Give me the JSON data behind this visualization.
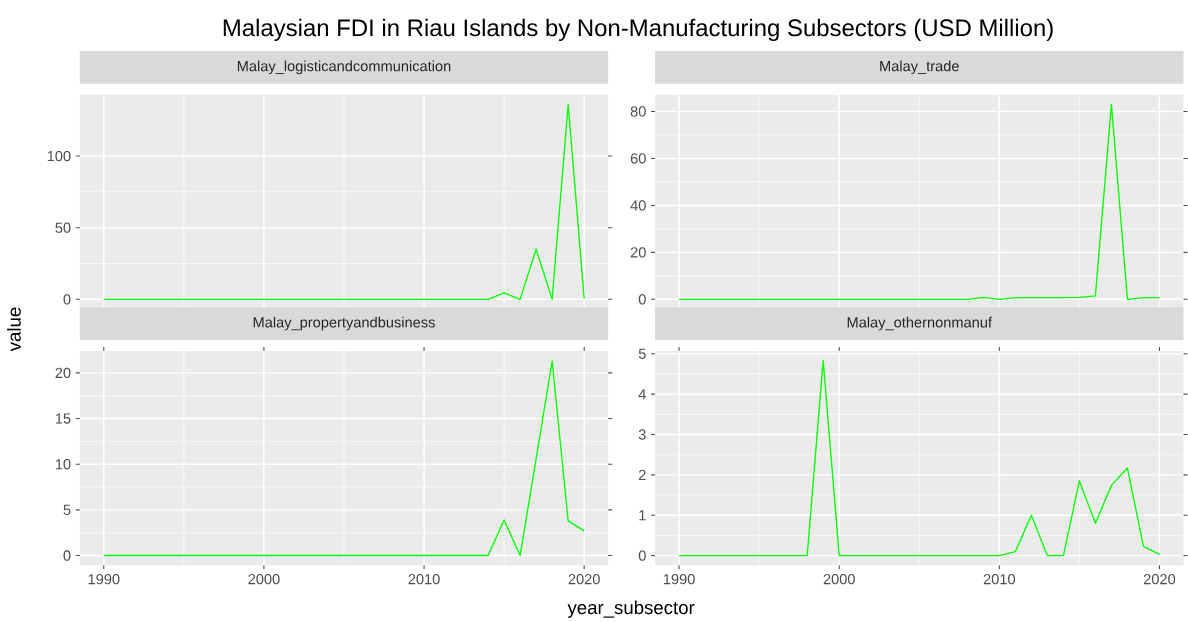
{
  "chart_data": [
    {
      "type": "line",
      "title": "Malaysian FDI in Riau Islands by Non-Manufacturing Subsectors (USD Million)",
      "subtitle": "Malay_logisticandcommunication",
      "ylabel": "value",
      "x": [
        1990,
        1991,
        1992,
        1993,
        1994,
        1995,
        1996,
        1997,
        1998,
        1999,
        2000,
        2001,
        2002,
        2003,
        2004,
        2005,
        2006,
        2007,
        2008,
        2009,
        2010,
        2011,
        2012,
        2013,
        2014,
        2015,
        2016,
        2017,
        2018,
        2019,
        2020
      ],
      "series": [
        {
          "color": "#00ff00",
          "values": [
            0,
            0,
            0,
            0,
            0,
            0,
            0,
            0,
            0,
            0,
            0,
            0,
            0,
            0,
            0,
            0,
            0,
            0,
            0,
            0,
            0,
            0,
            0,
            0,
            0,
            4.5,
            0,
            35,
            0,
            136,
            0.5
          ]
        }
      ],
      "xlim": [
        1988.5,
        2021.5
      ],
      "ylim": [
        -6.8,
        142.8
      ],
      "xticks": [
        1990,
        2000,
        2010,
        2020
      ],
      "yticks": [
        0,
        50,
        100
      ],
      "grid": true,
      "tick_labels": "y"
    },
    {
      "type": "line",
      "subtitle": "Malay_trade",
      "x": [
        1990,
        1991,
        1992,
        1993,
        1994,
        1995,
        1996,
        1997,
        1998,
        1999,
        2000,
        2001,
        2002,
        2003,
        2004,
        2005,
        2006,
        2007,
        2008,
        2009,
        2010,
        2011,
        2012,
        2013,
        2014,
        2015,
        2016,
        2017,
        2018,
        2019,
        2020
      ],
      "series": [
        {
          "color": "#00ff00",
          "values": [
            0,
            0,
            0,
            0,
            0,
            0,
            0,
            0,
            0,
            0,
            0,
            0,
            0,
            0,
            0,
            0,
            0,
            0,
            0,
            0.8,
            0,
            0.7,
            0.7,
            0.7,
            0.7,
            0.8,
            1.5,
            83,
            0,
            0.7,
            0.7
          ]
        }
      ],
      "xlim": [
        1988.5,
        2021.5
      ],
      "ylim": [
        -4.15,
        87.15
      ],
      "xticks": [
        1990,
        2000,
        2010,
        2020
      ],
      "yticks": [
        0,
        20,
        40,
        60,
        80
      ],
      "grid": true,
      "tick_labels": "y"
    },
    {
      "type": "line",
      "subtitle": "Malay_propertyandbusiness",
      "xlabel": "year_subsector",
      "x": [
        1990,
        1991,
        1992,
        1993,
        1994,
        1995,
        1996,
        1997,
        1998,
        1999,
        2000,
        2001,
        2002,
        2003,
        2004,
        2005,
        2006,
        2007,
        2008,
        2009,
        2010,
        2011,
        2012,
        2013,
        2014,
        2015,
        2016,
        2017,
        2018,
        2019,
        2020
      ],
      "series": [
        {
          "color": "#00ff00",
          "values": [
            0,
            0,
            0,
            0,
            0,
            0,
            0,
            0,
            0,
            0,
            0,
            0,
            0,
            0,
            0,
            0,
            0,
            0,
            0,
            0,
            0,
            0,
            0,
            0,
            0,
            3.9,
            0,
            10.6,
            21.3,
            3.8,
            2.7
          ]
        }
      ],
      "xlim": [
        1988.5,
        2021.5
      ],
      "ylim": [
        -1.07,
        22.4
      ],
      "xticks": [
        1990,
        2000,
        2010,
        2020
      ],
      "yticks": [
        0,
        5,
        10,
        15,
        20
      ],
      "grid": true
    },
    {
      "type": "line",
      "subtitle": "Malay_othernonmanuf",
      "x": [
        1990,
        1991,
        1992,
        1993,
        1994,
        1995,
        1996,
        1997,
        1998,
        1999,
        2000,
        2001,
        2002,
        2003,
        2004,
        2005,
        2006,
        2007,
        2008,
        2009,
        2010,
        2011,
        2012,
        2013,
        2014,
        2015,
        2016,
        2017,
        2018,
        2019,
        2020
      ],
      "series": [
        {
          "color": "#00ff00",
          "values": [
            0,
            0,
            0,
            0,
            0,
            0,
            0,
            0,
            0,
            4.83,
            0,
            0,
            0,
            0,
            0,
            0,
            0,
            0,
            0,
            0,
            0,
            0.1,
            1.0,
            0,
            0,
            1.85,
            0.8,
            1.74,
            2.17,
            0.23,
            0.03
          ]
        }
      ],
      "xlim": [
        1988.5,
        2021.5
      ],
      "ylim": [
        -0.24,
        5.07
      ],
      "xticks": [
        1990,
        2000,
        2010,
        2020
      ],
      "yticks": [
        0,
        1,
        2,
        3,
        4,
        5
      ],
      "grid": true
    }
  ]
}
